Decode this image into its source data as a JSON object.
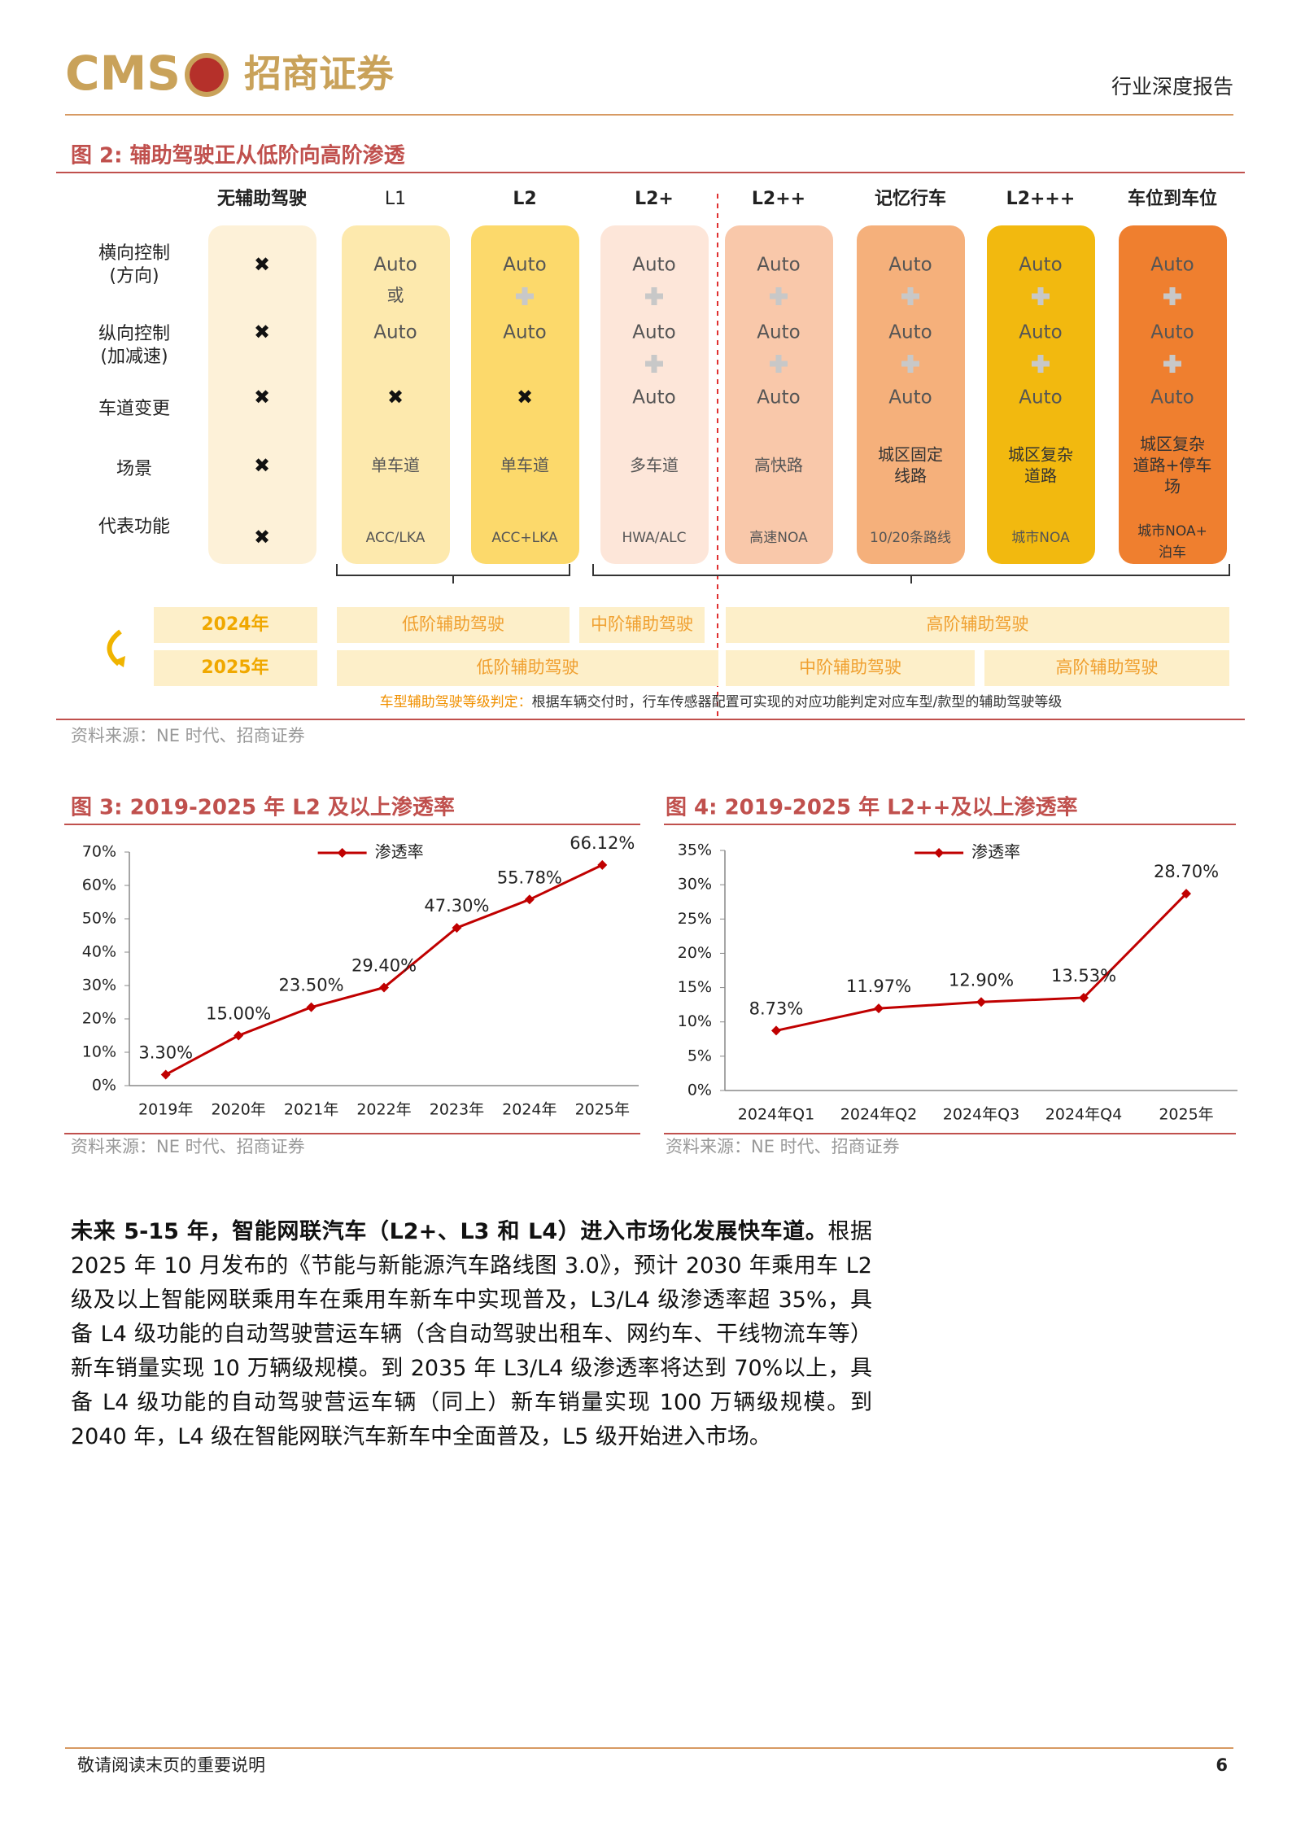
{
  "header": {
    "logo_text": "CMS",
    "logo_name": "招商证券",
    "report_type": "行业深度报告"
  },
  "figure2": {
    "title": "图 2: 辅助驾驶正从低阶向高阶渗透",
    "row_labels": [
      [
        "横向控制",
        "(方向)"
      ],
      [
        "纵向控制",
        "(加减速)"
      ],
      [
        "车道变更"
      ],
      [
        "场景"
      ],
      [
        "代表功能"
      ]
    ],
    "columns": [
      {
        "name": "无辅助驾驶",
        "color": "#fdf1d8",
        "cells": [
          "✖",
          "✖",
          "✖",
          "✖",
          "✖"
        ]
      },
      {
        "name": "L1",
        "color": "#fde9ad",
        "joiner": "或",
        "cells": [
          "Auto",
          "Auto",
          "✖",
          "单车道",
          "ACC/LKA"
        ]
      },
      {
        "name": "L2",
        "color": "#fcd96b",
        "cells": [
          "Auto",
          "Auto",
          "✖",
          "单车道",
          "ACC+LKA"
        ]
      },
      {
        "name": "L2+",
        "color": "#fde6d9",
        "cells": [
          "Auto",
          "Auto",
          "Auto",
          "多车道",
          "HWA/ALC"
        ]
      },
      {
        "name": "L2++",
        "color": "#f9c8aa",
        "cells": [
          "Auto",
          "Auto",
          "Auto",
          "高快路",
          "高速NOA"
        ]
      },
      {
        "name": "记忆行车",
        "color": "#f5b07b",
        "cells": [
          "Auto",
          "Auto",
          "Auto",
          [
            "城区固定",
            "线路"
          ],
          "10/20条路线"
        ]
      },
      {
        "name": "L2+++",
        "color": "#f2b90f",
        "cells": [
          "Auto",
          "Auto",
          "Auto",
          [
            "城区复杂",
            "道路"
          ],
          "城市NOA"
        ]
      },
      {
        "name": "车位到车位",
        "color": "#ef7f2f",
        "cells": [
          "Auto",
          "Auto",
          "Auto",
          [
            "城区复杂",
            "道路+停车",
            "场"
          ],
          [
            "城市NOA+",
            "泊车"
          ]
        ]
      }
    ],
    "periods": [
      {
        "year": "2024年",
        "bands": [
          "低阶辅助驾驶",
          "中阶辅助驾驶",
          "高阶辅助驾驶"
        ]
      },
      {
        "year": "2025年",
        "bands": [
          "低阶辅助驾驶",
          "中阶辅助驾驶",
          "高阶辅助驾驶"
        ]
      }
    ],
    "note_label": "车型辅助驾驶等级判定：",
    "note": "根据车辆交付时，行车传感器配置可实现的对应功能判定对应车型/款型的辅助驾驶等级",
    "source": "资料来源：NE 时代、招商证券"
  },
  "chart_data": [
    {
      "type": "line",
      "title": "图 3: 2019-2025 年 L2 及以上渗透率",
      "categories": [
        "2019年",
        "2020年",
        "2021年",
        "2022年",
        "2023年",
        "2024年",
        "2025年"
      ],
      "series": [
        {
          "name": "渗透率",
          "color": "#c00000",
          "values": [
            3.3,
            15,
            23.5,
            29.4,
            47.3,
            55.78,
            66.12
          ],
          "value_labels": [
            "3.30%",
            "15.00%",
            "23.50%",
            "29.40%",
            "47.30%",
            "55.78%",
            "66.12%"
          ]
        }
      ],
      "ylim": [
        0,
        70
      ],
      "yticks": [
        {
          "value": 0,
          "label": "0%"
        },
        {
          "value": 10,
          "label": "10%"
        },
        {
          "value": 20,
          "label": "20%"
        },
        {
          "value": 30,
          "label": "30%"
        },
        {
          "value": 40,
          "label": "40%"
        },
        {
          "value": 50,
          "label": "50%"
        },
        {
          "value": 60,
          "label": "60%"
        },
        {
          "value": 70,
          "label": "70%"
        }
      ],
      "grid": false,
      "legend": "top",
      "source": "资料来源：NE 时代、招商证券"
    },
    {
      "type": "line",
      "title": "图 4: 2019-2025 年 L2++及以上渗透率",
      "categories": [
        "2024年Q1",
        "2024年Q2",
        "2024年Q3",
        "2024年Q4",
        "2025年"
      ],
      "series": [
        {
          "name": "渗透率",
          "color": "#c00000",
          "values": [
            8.73,
            11.97,
            12.9,
            13.53,
            28.7
          ],
          "value_labels": [
            "8.73%",
            "11.97%",
            "12.90%",
            "13.53%",
            "28.70%"
          ]
        }
      ],
      "ylim": [
        0,
        35
      ],
      "yticks": [
        {
          "value": 0,
          "label": "0%"
        },
        {
          "value": 5,
          "label": "5%"
        },
        {
          "value": 10,
          "label": "10%"
        },
        {
          "value": 15,
          "label": "15%"
        },
        {
          "value": 20,
          "label": "20%"
        },
        {
          "value": 25,
          "label": "25%"
        },
        {
          "value": 30,
          "label": "30%"
        },
        {
          "value": 35,
          "label": "35%"
        }
      ],
      "grid": false,
      "legend": "top",
      "source": "资料来源：NE 时代、招商证券"
    }
  ],
  "body": {
    "lead": "未来 5-15 年，智能网联汽车（L2+、L3 和 L4）进入市场化发展快车道。",
    "text": "根据 2025 年 10 月发布的《节能与新能源汽车路线图 3.0》，预计 2030 年乘用车 L2 级及以上智能网联乘用车在乘用车新车中实现普及，L3/L4 级渗透率超 35%，具备 L4 级功能的自动驾驶营运车辆（含自动驾驶出租车、网约车、干线物流车等）新车销量实现 10 万辆级规模。到 2035 年 L3/L4 级渗透率将达到 70%以上，具备 L4 级功能的自动驾驶营运车辆（同上）新车销量实现 100 万辆级规模。到 2040 年，L4 级在智能网联汽车新车中全面普及，L5 级开始进入市场。"
  },
  "footer": {
    "disclaimer": "敬请阅读末页的重要说明",
    "page": "6"
  }
}
